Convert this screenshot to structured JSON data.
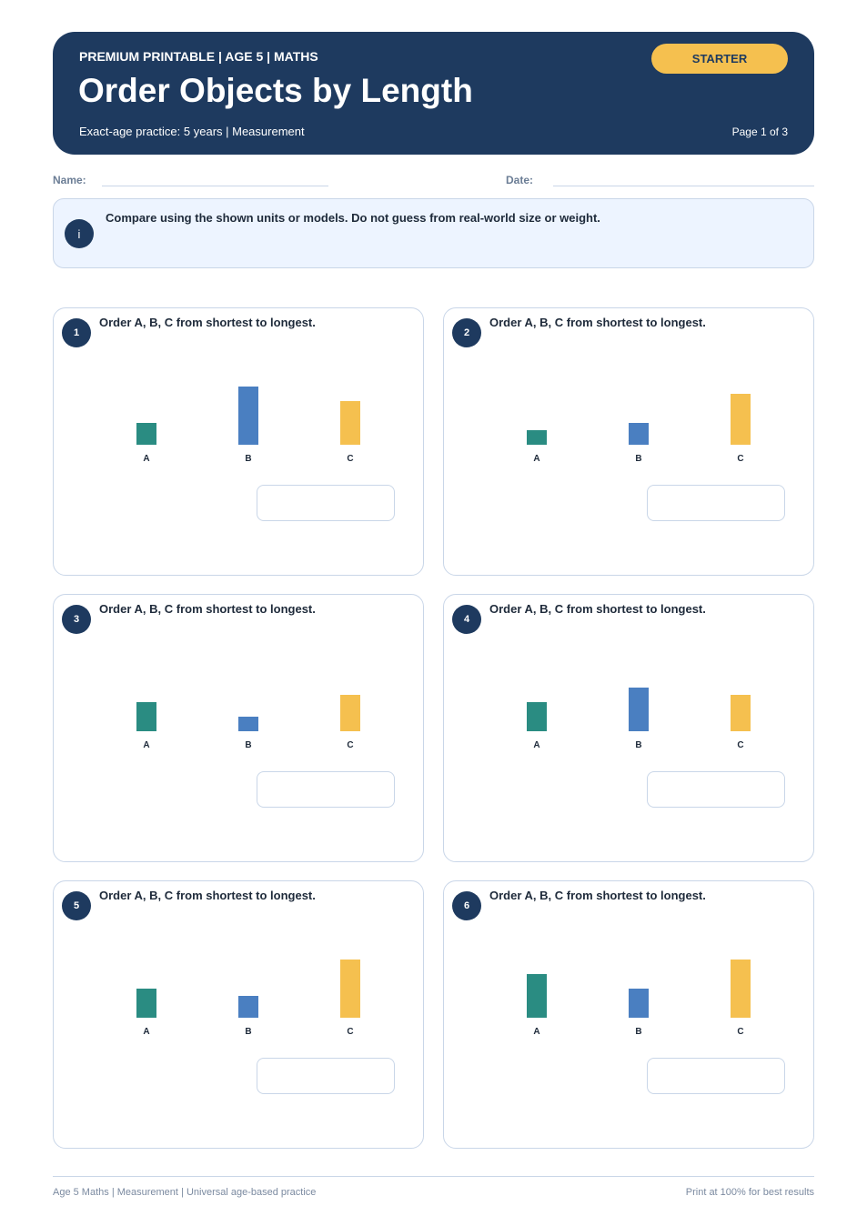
{
  "header": {
    "kicker": "PREMIUM PRINTABLE | AGE 5 | MATHS",
    "title": "Order Objects by Length",
    "subtitle": "Exact-age practice: 5 years | Measurement",
    "badge": "STARTER",
    "page": "Page 1 of 3"
  },
  "fields": {
    "name": "Name:",
    "date": "Date:"
  },
  "note": {
    "icon": "i",
    "text": "Compare using the shown units or models. Do not guess from real-world size or weight."
  },
  "questions": [
    {
      "number": 1,
      "prompt": "Order A, B, C from shortest to longest.",
      "items": [
        {
          "label": "A",
          "length": 3
        },
        {
          "label": "B",
          "length": 8
        },
        {
          "label": "C",
          "length": 6
        }
      ]
    },
    {
      "number": 2,
      "prompt": "Order A, B, C from shortest to longest.",
      "items": [
        {
          "label": "A",
          "length": 2
        },
        {
          "label": "B",
          "length": 3
        },
        {
          "label": "C",
          "length": 7
        }
      ]
    },
    {
      "number": 3,
      "prompt": "Order A, B, C from shortest to longest.",
      "items": [
        {
          "label": "A",
          "length": 4
        },
        {
          "label": "B",
          "length": 2
        },
        {
          "label": "C",
          "length": 5
        }
      ]
    },
    {
      "number": 4,
      "prompt": "Order A, B, C from shortest to longest.",
      "items": [
        {
          "label": "A",
          "length": 4
        },
        {
          "label": "B",
          "length": 6
        },
        {
          "label": "C",
          "length": 5
        }
      ]
    },
    {
      "number": 5,
      "prompt": "Order A, B, C from shortest to longest.",
      "items": [
        {
          "label": "A",
          "length": 4
        },
        {
          "label": "B",
          "length": 3
        },
        {
          "label": "C",
          "length": 8
        }
      ]
    },
    {
      "number": 6,
      "prompt": "Order A, B, C from shortest to longest.",
      "items": [
        {
          "label": "A",
          "length": 6
        },
        {
          "label": "B",
          "length": 4
        },
        {
          "label": "C",
          "length": 8
        }
      ]
    }
  ],
  "footer": {
    "left": "Age 5 Maths | Measurement | Universal age-based practice",
    "right": "Print at 100% for best results"
  }
}
